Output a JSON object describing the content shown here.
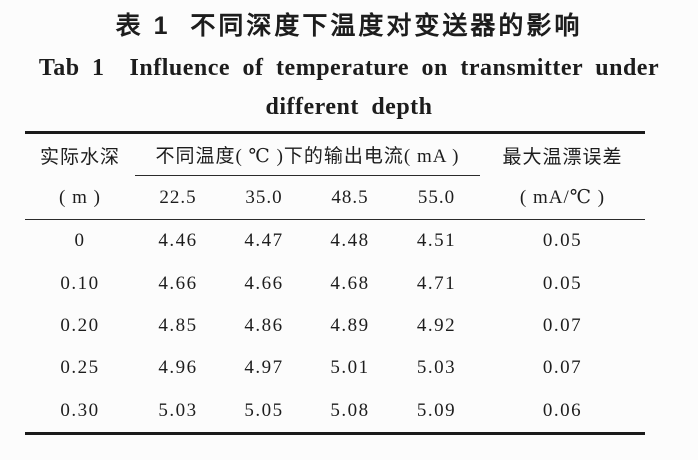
{
  "colors": {
    "background": "#fcfcfc",
    "text": "#1d1d1d",
    "rule": "#1a1a1a"
  },
  "caption": {
    "zh": "表 1  不同深度下温度对变送器的影响",
    "en_line1": "Tab 1  Influence of temperature on transmitter under",
    "en_line2": "different depth"
  },
  "table": {
    "depth_header": {
      "label": "实际水深",
      "unit": "( m )"
    },
    "temperature_group_header": "不同温度( ℃ )下的输出电流( mA )",
    "temperature_columns": [
      "22.5",
      "35.0",
      "48.5",
      "55.0"
    ],
    "drift_header": {
      "label": "最大温漂误差",
      "unit": "( mA/℃ )"
    },
    "rows": [
      {
        "depth": "0",
        "currents": [
          "4.46",
          "4.47",
          "4.48",
          "4.51"
        ],
        "drift": "0.05"
      },
      {
        "depth": "0.10",
        "currents": [
          "4.66",
          "4.66",
          "4.68",
          "4.71"
        ],
        "drift": "0.05"
      },
      {
        "depth": "0.20",
        "currents": [
          "4.85",
          "4.86",
          "4.89",
          "4.92"
        ],
        "drift": "0.07"
      },
      {
        "depth": "0.25",
        "currents": [
          "4.96",
          "4.97",
          "5.01",
          "5.03"
        ],
        "drift": "0.07"
      },
      {
        "depth": "0.30",
        "currents": [
          "5.03",
          "5.05",
          "5.08",
          "5.09"
        ],
        "drift": "0.06"
      }
    ]
  }
}
